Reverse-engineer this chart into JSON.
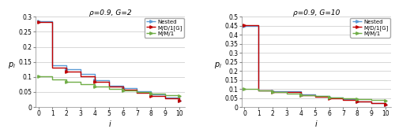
{
  "left": {
    "title": "ρ=0.9, G=2",
    "ylabel": "$p_i$",
    "xlabel": "$i$",
    "ylim": [
      0,
      0.3
    ],
    "yticks": [
      0,
      0.05,
      0.1,
      0.15,
      0.2,
      0.25,
      0.3
    ],
    "xticks": [
      0,
      1,
      2,
      3,
      4,
      5,
      6,
      7,
      8,
      9,
      10
    ],
    "nested": [
      0.285,
      0.14,
      0.127,
      0.11,
      0.09,
      0.072,
      0.062,
      0.052,
      0.042,
      0.032,
      0.022
    ],
    "mdg": [
      0.283,
      0.132,
      0.118,
      0.102,
      0.083,
      0.068,
      0.057,
      0.047,
      0.037,
      0.028,
      0.02
    ],
    "mm1": [
      0.103,
      0.093,
      0.083,
      0.075,
      0.068,
      0.061,
      0.055,
      0.049,
      0.044,
      0.04,
      0.036
    ],
    "x_vals": [
      0,
      1,
      2,
      3,
      4,
      5,
      6,
      7,
      8,
      9,
      10
    ]
  },
  "right": {
    "title": "ρ=0.9, G=10",
    "ylabel": "$p_i$",
    "xlabel": "$i$",
    "ylim": [
      0,
      0.5
    ],
    "yticks": [
      0,
      0.05,
      0.1,
      0.15,
      0.2,
      0.25,
      0.3,
      0.35,
      0.4,
      0.45,
      0.5
    ],
    "xticks": [
      0,
      1,
      2,
      3,
      4,
      5,
      6,
      7,
      8,
      9,
      10
    ],
    "nested": [
      0.448,
      0.092,
      0.088,
      0.088,
      0.07,
      0.062,
      0.052,
      0.042,
      0.033,
      0.022,
      0.013
    ],
    "mdg": [
      0.452,
      0.09,
      0.085,
      0.085,
      0.067,
      0.059,
      0.05,
      0.04,
      0.031,
      0.021,
      0.012
    ],
    "mm1": [
      0.1,
      0.09,
      0.082,
      0.074,
      0.067,
      0.06,
      0.054,
      0.049,
      0.044,
      0.039,
      0.035
    ],
    "x_vals": [
      0,
      1,
      2,
      3,
      4,
      5,
      6,
      7,
      8,
      9,
      10
    ]
  },
  "nested_color": "#5b9bd5",
  "mdg_color": "#c00000",
  "mm1_color": "#70ad47",
  "nested_label": "Nested",
  "mdg_label": "M/D/1[G]",
  "mm1_label": "M/M/1",
  "linewidth": 1.0,
  "marker": ">",
  "marker_size": 2.5,
  "marker_every": 2
}
